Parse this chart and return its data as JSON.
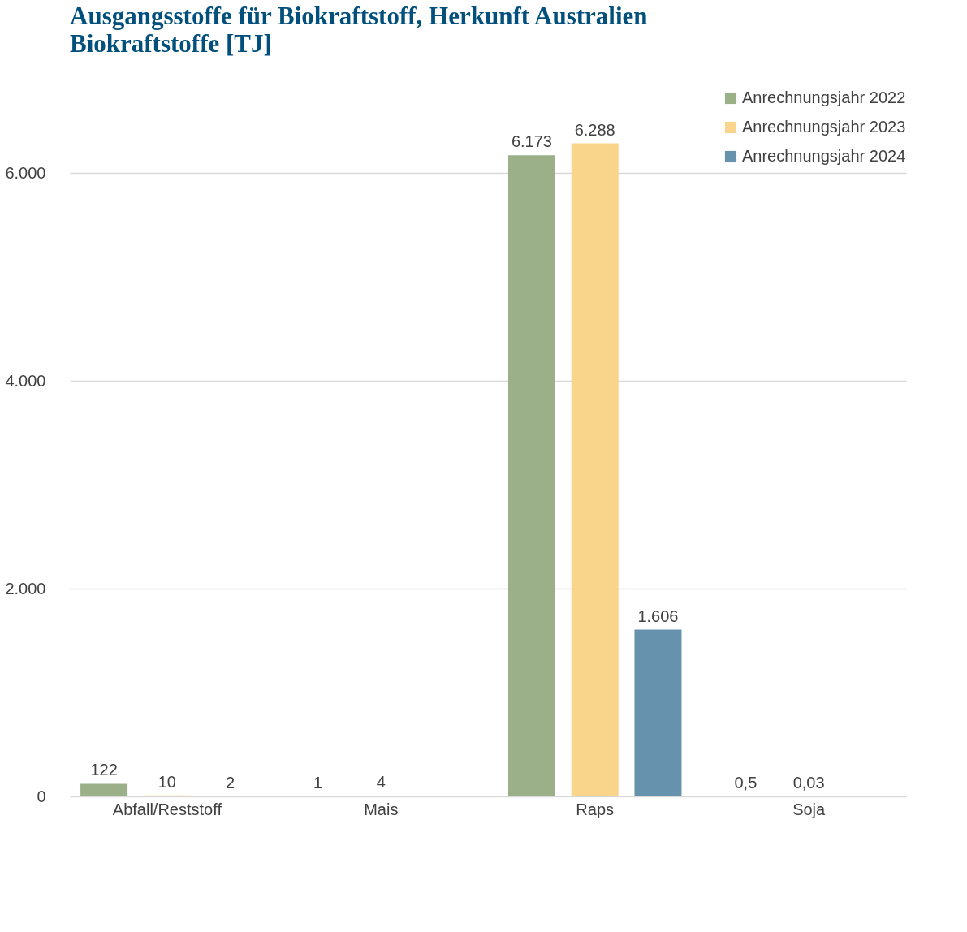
{
  "chart_data": {
    "type": "bar",
    "title": "Ausgangsstoffe für Biokraftstoff, Herkunft Australien",
    "subtitle": "Biokraftstoffe [TJ]",
    "categories": [
      "Abfall/Reststoff",
      "Mais",
      "Raps",
      "Soja"
    ],
    "series": [
      {
        "name": "Anrechnungsjahr 2022",
        "color": "#9bb088",
        "values": [
          122,
          1,
          6173,
          0.5
        ],
        "value_labels": [
          "122",
          "1",
          "6.173",
          "0,5"
        ]
      },
      {
        "name": "Anrechnungsjahr 2023",
        "color": "#f8d58a",
        "values": [
          10,
          4,
          6288,
          0.03
        ],
        "value_labels": [
          "10",
          "4",
          "6.288",
          "0,03"
        ]
      },
      {
        "name": "Anrechnungsjahr 2024",
        "color": "#6692ae",
        "values": [
          2,
          null,
          1606,
          null
        ],
        "value_labels": [
          "2",
          null,
          "1.606",
          null
        ]
      }
    ],
    "ylim": [
      0,
      6800
    ],
    "yticks": [
      0,
      {
        "value": 2000,
        "label": "2.000"
      },
      {
        "value": 4000,
        "label": "4.000"
      },
      {
        "value": 6000,
        "label": "6.000"
      }
    ],
    "grid": "y",
    "legend": "top right"
  }
}
